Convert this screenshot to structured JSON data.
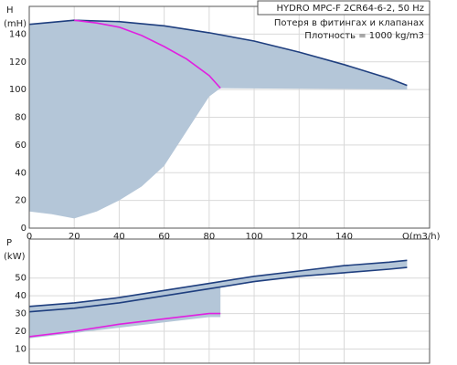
{
  "chart_data": [
    {
      "type": "line",
      "title": "HYDRO MPC-F 2CR64-6-2, 50 Hz",
      "annotations": [
        "Потеря в фитингах и клапанах",
        "Плотность = 1000 kg/m3"
      ],
      "y_label": [
        "H",
        "(mH)"
      ],
      "x_label": "Q(m3/h)",
      "xlim": [
        0,
        178
      ],
      "xticks": [
        0,
        20,
        40,
        60,
        80,
        100,
        120,
        140
      ],
      "ylim": [
        0,
        160
      ],
      "yticks": [
        0,
        20,
        40,
        60,
        80,
        100,
        120,
        140
      ],
      "grid": true,
      "show_xtick_labels": true,
      "area": {
        "color": "#b4c6d8",
        "x": [
          0,
          20,
          40,
          60,
          80,
          100,
          120,
          140,
          160,
          168,
          168,
          85,
          80,
          70,
          60,
          50,
          40,
          30,
          20,
          10,
          0
        ],
        "values": [
          147,
          150,
          149,
          146,
          141,
          135,
          127,
          118,
          108,
          103,
          100,
          101,
          95,
          70,
          45,
          30,
          20,
          12,
          7,
          10,
          12
        ]
      },
      "series": [
        {
          "color": "#1f3f7f",
          "x": [
            0,
            20,
            40,
            60,
            80,
            100,
            120,
            140,
            160,
            168
          ],
          "values": [
            147,
            150,
            149,
            146,
            141,
            135,
            127,
            118,
            108,
            103
          ]
        },
        {
          "color": "#e020e0",
          "x": [
            20,
            30,
            40,
            50,
            60,
            70,
            80,
            85
          ],
          "values": [
            150,
            148,
            145,
            139,
            131,
            122,
            110,
            101
          ]
        }
      ]
    },
    {
      "type": "line",
      "y_label": [
        "P",
        "(kW)"
      ],
      "xlim": [
        0,
        178
      ],
      "xticks": [
        0,
        20,
        40,
        60,
        80,
        100,
        120,
        140
      ],
      "ylim": [
        2,
        72
      ],
      "yticks": [
        10,
        20,
        30,
        40,
        50
      ],
      "grid": true,
      "show_xtick_labels": false,
      "area": {
        "color": "#b4c6d8",
        "x": [
          0,
          20,
          40,
          60,
          80,
          100,
          120,
          140,
          160,
          168,
          168,
          160,
          140,
          120,
          100,
          85,
          85,
          80,
          60,
          40,
          20,
          0
        ],
        "values": [
          34,
          36,
          39,
          43,
          47,
          51,
          54,
          57,
          59,
          60,
          56,
          55,
          53,
          51,
          48,
          45,
          28,
          28,
          25,
          22,
          19,
          16
        ]
      },
      "series": [
        {
          "color": "#1f3f7f",
          "x": [
            0,
            20,
            40,
            60,
            80,
            100,
            120,
            140,
            160,
            168
          ],
          "values": [
            34,
            36,
            39,
            43,
            47,
            51,
            54,
            57,
            59,
            60
          ]
        },
        {
          "color": "#1f3f7f",
          "x": [
            0,
            20,
            40,
            60,
            80,
            100,
            120,
            140,
            160,
            168
          ],
          "values": [
            31,
            33,
            36,
            40,
            44,
            48,
            51,
            53,
            55,
            56
          ]
        },
        {
          "color": "#e020e0",
          "x": [
            0,
            20,
            40,
            60,
            80,
            85
          ],
          "values": [
            17,
            20,
            24,
            27,
            30,
            30
          ]
        }
      ]
    }
  ]
}
